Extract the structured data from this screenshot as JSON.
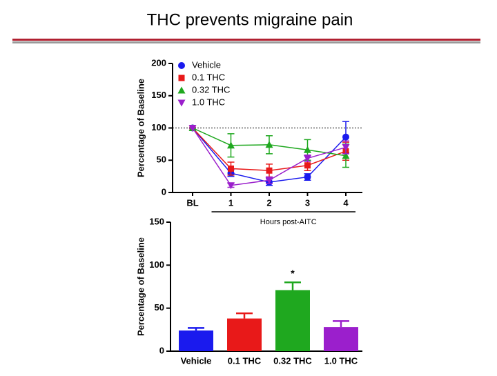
{
  "title": "THC prevents migraine pain",
  "chart_data": [
    {
      "type": "line",
      "ylabel": "Percentage of Baseline",
      "xlabel": "Hours post-AITC",
      "categories": [
        "BL",
        "1",
        "2",
        "3",
        "4"
      ],
      "ylim": [
        0,
        200
      ],
      "yticks": [
        0,
        50,
        100,
        150,
        200
      ],
      "reference_line": 100,
      "legend": "upper left",
      "series": [
        {
          "name": "Vehicle",
          "color": "#1a1aee",
          "marker": "circle",
          "values": [
            100,
            30,
            16,
            24,
            86
          ],
          "errors": [
            0,
            5,
            5,
            5,
            24
          ]
        },
        {
          "name": "0.1 THC",
          "color": "#e81919",
          "marker": "square",
          "values": [
            100,
            37,
            34,
            42,
            64
          ],
          "errors": [
            0,
            10,
            10,
            8,
            14
          ]
        },
        {
          "name": "0.32 THC",
          "color": "#1fa81f",
          "marker": "triangle-up",
          "values": [
            100,
            73,
            74,
            66,
            57
          ],
          "errors": [
            0,
            18,
            14,
            16,
            18
          ]
        },
        {
          "name": "1.0 THC",
          "color": "#9b1fcc",
          "marker": "triangle-down",
          "values": [
            100,
            11,
            19,
            53,
            70
          ],
          "errors": [
            0,
            3,
            5,
            5,
            10
          ]
        }
      ]
    },
    {
      "type": "bar",
      "ylabel": "Percentage of Baseline",
      "categories": [
        "Vehicle",
        "0.1 THC",
        "0.32 THC",
        "1.0 THC"
      ],
      "values": [
        24,
        38,
        71,
        28
      ],
      "errors": [
        3,
        6,
        9,
        7
      ],
      "colors": [
        "#1a1aee",
        "#e81919",
        "#1fa81f",
        "#9b1fcc"
      ],
      "ylim": [
        0,
        150
      ],
      "yticks": [
        0,
        50,
        100,
        150
      ],
      "annotations": [
        {
          "text": "*",
          "x": "0.32 THC"
        }
      ]
    }
  ]
}
